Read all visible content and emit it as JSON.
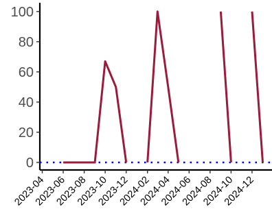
{
  "chart_data": {
    "type": "line",
    "title": "",
    "xlabel": "",
    "ylabel": "",
    "x_axis": {
      "type": "date",
      "ticks": [
        "2023-04",
        "2023-06",
        "2023-08",
        "2023-10",
        "2023-12",
        "2024-02",
        "2024-04",
        "2024-06",
        "2024-08",
        "2024-10",
        "2024-12"
      ],
      "range": [
        "2023-03-25",
        "2025-01-28"
      ]
    },
    "y_axis": {
      "ticks": [
        0,
        20,
        40,
        60,
        80,
        100
      ],
      "range": [
        -5,
        104
      ]
    },
    "grid": false,
    "legend": "none",
    "series": [
      {
        "color": "#9b1b3b",
        "segments": [
          [
            {
              "x": "2023-06-01",
              "y": 0
            },
            {
              "x": "2023-07-01",
              "y": 0
            },
            {
              "x": "2023-08-01",
              "y": 0
            },
            {
              "x": "2023-09-01",
              "y": 0
            },
            {
              "x": "2023-10-01",
              "y": 67
            },
            {
              "x": "2023-11-01",
              "y": 50
            },
            {
              "x": "2023-12-01",
              "y": 0
            }
          ],
          [
            {
              "x": "2024-02-01",
              "y": 0
            },
            {
              "x": "2024-03-01",
              "y": 100
            },
            {
              "x": "2024-04-01",
              "y": 50
            },
            {
              "x": "2024-05-01",
              "y": 0
            }
          ],
          [
            {
              "x": "2024-09-01",
              "y": 100
            },
            {
              "x": "2024-10-01",
              "y": 0
            }
          ],
          [
            {
              "x": "2024-12-01",
              "y": 100
            },
            {
              "x": "2025-01-01",
              "y": 0
            }
          ]
        ]
      }
    ],
    "reference_lines": [
      {
        "orientation": "horizontal",
        "y": 0,
        "style": "dotted",
        "color": "#0000ff"
      }
    ]
  }
}
